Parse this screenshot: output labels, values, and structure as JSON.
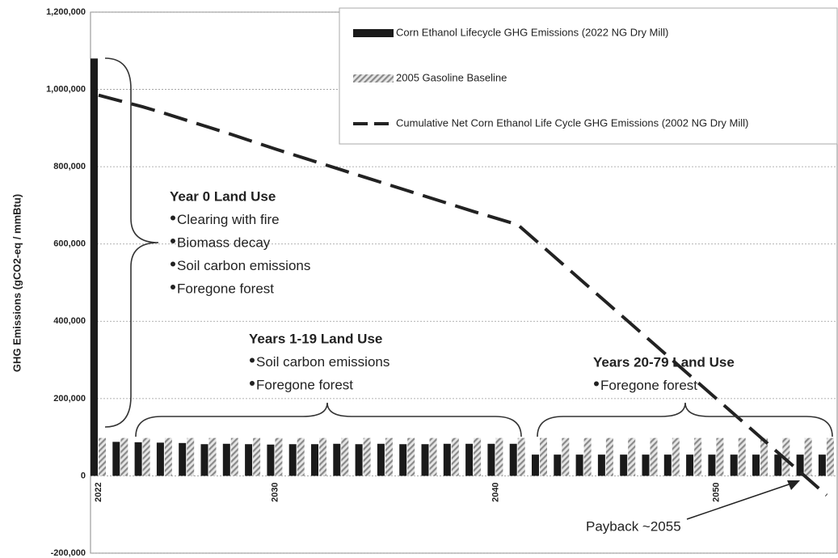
{
  "chart_data": {
    "type": "bar",
    "y_label": "GHG Emissions (gCO2-eq / mmBtu)",
    "categories": [
      "2022",
      null,
      null,
      null,
      null,
      null,
      null,
      null,
      "2030",
      null,
      null,
      null,
      null,
      null,
      null,
      null,
      null,
      null,
      "2040",
      null,
      null,
      null,
      null,
      null,
      null,
      null,
      null,
      null,
      "2050",
      null,
      null,
      null,
      null,
      null
    ],
    "series": [
      {
        "name": "Corn Ethanol Lifecycle GHG Emissions (2022 NG Dry Mill)",
        "type": "bar",
        "color": "#1a1a1a",
        "values": [
          1080000,
          88000,
          87000,
          86000,
          85000,
          82000,
          83000,
          82000,
          81000,
          82000,
          82000,
          83000,
          82000,
          83000,
          82000,
          82000,
          83000,
          83000,
          83000,
          83000,
          55000,
          55000,
          55000,
          55000,
          55000,
          55000,
          55000,
          55000,
          55000,
          55000,
          55000,
          55000,
          55000,
          55000
        ]
      },
      {
        "name": "2005 Gasoline Baseline",
        "type": "bar",
        "pattern": "hatch",
        "color": "#9a9a9a",
        "values": [
          98000,
          98000,
          98000,
          98000,
          98000,
          98000,
          98000,
          98000,
          98000,
          98000,
          98000,
          98000,
          98000,
          98000,
          98000,
          98000,
          98000,
          98000,
          98000,
          98000,
          98000,
          98000,
          98000,
          98000,
          98000,
          98000,
          98000,
          98000,
          98000,
          98000,
          98000,
          98000,
          98000,
          98000
        ]
      },
      {
        "name": "Cumulative Net Corn Ethanol Life Cycle GHG Emissions (2002 NG Dry Mill)",
        "type": "line",
        "dashed": true,
        "color": "#222222",
        "values": [
          985000,
          970000,
          955000,
          938000,
          920000,
          902000,
          884000,
          865000,
          846000,
          828000,
          810000,
          792000,
          774000,
          756000,
          738000,
          720000,
          702000,
          684000,
          667000,
          650000,
          600000,
          550000,
          500000,
          450000,
          400000,
          350000,
          300000,
          250000,
          200000,
          150000,
          100000,
          50000,
          0,
          -50000
        ]
      }
    ],
    "ylim": [
      -200000,
      1200000
    ],
    "yticks": [
      {
        "value": -200000,
        "label": "-200,000"
      },
      0,
      {
        "value": 200000,
        "label": "200,000"
      },
      {
        "value": 400000,
        "label": "400,000"
      },
      {
        "value": 600000,
        "label": "600,000"
      },
      {
        "value": 800000,
        "label": "800,000"
      },
      {
        "value": 1000000,
        "label": "1,000,000"
      },
      {
        "value": 1200000,
        "label": "1,200,000"
      }
    ],
    "grid": true,
    "legend": "top-right",
    "annotations": [
      {
        "title": "Year 0 Land Use",
        "items": [
          "Clearing with fire",
          "Biomass decay",
          "Soil carbon emissions",
          "Foregone forest"
        ]
      },
      {
        "title": "Years 1-19 Land Use",
        "items": [
          "Soil carbon emissions",
          "Foregone forest"
        ]
      },
      {
        "title": "Years 20-79 Land Use",
        "items": [
          "Foregone forest"
        ]
      }
    ],
    "payback_label": "Payback ~2055"
  }
}
